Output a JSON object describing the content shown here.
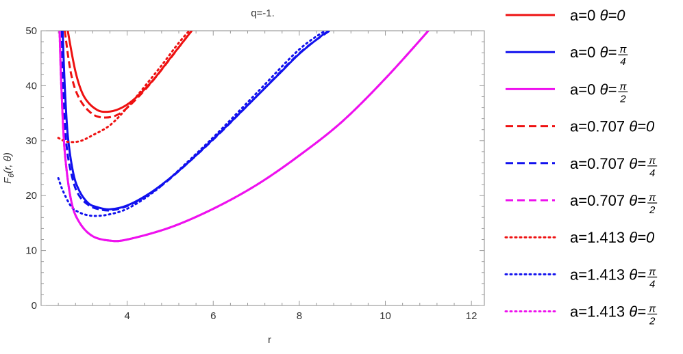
{
  "chart_data": {
    "type": "line",
    "title": "q=-1.",
    "xlabel": "r",
    "ylabel": {
      "main": "F",
      "sub": "θ",
      "args": "(r, θ)"
    },
    "xlim": [
      2.0,
      12.3
    ],
    "ylim": [
      0,
      50
    ],
    "xticks": [
      4,
      6,
      8,
      10,
      12
    ],
    "yticks": [
      0,
      10,
      20,
      30,
      40,
      50
    ],
    "grid": false,
    "legend_placement": "right",
    "colors": {
      "theta_0": "#ee1111",
      "theta_pi4": "#1111ee",
      "theta_pi2": "#ee11ee"
    },
    "series": [
      {
        "name": "a=0 θ=0",
        "a_text": "a=0",
        "theta_text": "θ=0",
        "frac": false,
        "color": "#ee1111",
        "style": "solid",
        "x": [
          2.62,
          2.8,
          3.0,
          3.3,
          3.6,
          3.9,
          4.2,
          4.6,
          5.0,
          5.5
        ],
        "y": [
          50,
          42.5,
          38.0,
          35.6,
          35.3,
          36.1,
          37.8,
          41.0,
          45.0,
          50.0
        ]
      },
      {
        "name": "a=0 θ=π/4",
        "a_text": "a=0",
        "theta_text": "θ=",
        "frac": true,
        "frac_num": "π",
        "frac_den": "4",
        "color": "#1111ee",
        "style": "solid",
        "x": [
          2.5,
          2.55,
          2.62,
          2.75,
          2.9,
          3.1,
          3.3,
          3.6,
          4.0,
          4.5,
          5.0,
          5.5,
          6.0,
          6.5,
          7.0,
          7.5,
          8.0,
          8.5,
          8.7
        ],
        "y": [
          50,
          40.0,
          31.0,
          24.0,
          20.7,
          18.6,
          17.9,
          17.5,
          18.2,
          20.3,
          23.2,
          26.6,
          30.3,
          34.1,
          38.0,
          41.9,
          45.8,
          49.0,
          50.0
        ]
      },
      {
        "name": "a=0 θ=π/2",
        "a_text": "a=0",
        "theta_text": "θ=",
        "frac": true,
        "frac_num": "π",
        "frac_den": "2",
        "color": "#ee11ee",
        "style": "solid",
        "x": [
          2.43,
          2.47,
          2.55,
          2.7,
          2.9,
          3.2,
          3.6,
          4.0,
          5.0,
          6.0,
          7.0,
          8.0,
          9.0,
          10.0,
          11.0
        ],
        "y": [
          50,
          40.0,
          28.0,
          19.0,
          15.0,
          12.6,
          11.8,
          12.0,
          14.2,
          17.6,
          21.9,
          27.3,
          33.5,
          41.3,
          50.0
        ]
      },
      {
        "name": "a=0.707 θ=0",
        "a_text": "a=0.707",
        "theta_text": "θ=0",
        "frac": false,
        "color": "#ee1111",
        "style": "dashed",
        "x": [
          2.55,
          2.7,
          2.9,
          3.2,
          3.5,
          3.8,
          4.1,
          4.5,
          4.9,
          5.3,
          5.5
        ],
        "y": [
          50,
          42.0,
          37.5,
          34.8,
          34.2,
          34.8,
          36.7,
          40.0,
          43.9,
          48.0,
          50.0
        ]
      },
      {
        "name": "a=0.707 θ=π/4",
        "a_text": "a=0.707",
        "theta_text": "θ=",
        "frac": true,
        "frac_num": "π",
        "frac_den": "4",
        "color": "#1111ee",
        "style": "dashed",
        "x": [
          2.48,
          2.52,
          2.6,
          2.75,
          2.9,
          3.1,
          3.3,
          3.6,
          4.0,
          4.5,
          5.0,
          6.0,
          7.0,
          8.0,
          8.7
        ],
        "y": [
          50,
          38.0,
          28.5,
          22.5,
          19.8,
          18.3,
          17.6,
          17.3,
          18.1,
          20.2,
          23.1,
          30.2,
          38.0,
          45.9,
          50.0
        ]
      },
      {
        "name": "a=0.707 θ=π/2",
        "a_text": "a=0.707",
        "theta_text": "θ=",
        "frac": true,
        "frac_num": "π",
        "frac_den": "2",
        "color": "#ee11ee",
        "style": "dashed",
        "x": [
          2.43,
          2.47,
          2.55,
          2.7,
          2.9,
          3.2,
          3.6,
          4.0,
          5.0,
          6.0,
          7.0,
          8.0,
          9.0,
          10.0,
          11.0
        ],
        "y": [
          50,
          40.0,
          28.0,
          19.0,
          15.0,
          12.6,
          11.8,
          12.0,
          14.2,
          17.6,
          21.9,
          27.3,
          33.5,
          41.3,
          50.0
        ]
      },
      {
        "name": "a=1.413 θ=0",
        "a_text": "a=1.413",
        "theta_text": "θ=0",
        "frac": false,
        "color": "#ee1111",
        "style": "dotted",
        "x": [
          2.4,
          2.6,
          2.9,
          3.2,
          3.6,
          4.0,
          4.4,
          4.8,
          5.2,
          5.5
        ],
        "y": [
          30.5,
          29.8,
          29.9,
          31.0,
          32.8,
          36.0,
          39.8,
          43.7,
          47.8,
          50.5
        ]
      },
      {
        "name": "a=1.413 θ=π/4",
        "a_text": "a=1.413",
        "theta_text": "θ=",
        "frac": true,
        "frac_num": "π",
        "frac_den": "4",
        "color": "#1111ee",
        "style": "dotted",
        "x": [
          2.4,
          2.5,
          2.7,
          2.9,
          3.1,
          3.3,
          3.6,
          4.0,
          4.5,
          5.0,
          6.0,
          7.0,
          8.0,
          8.7
        ],
        "y": [
          23.2,
          21.0,
          18.0,
          16.9,
          16.4,
          16.3,
          16.6,
          17.6,
          20.0,
          23.2,
          30.6,
          38.6,
          46.6,
          50.5
        ]
      },
      {
        "name": "a=1.413 θ=π/2",
        "a_text": "a=1.413",
        "theta_text": "θ=",
        "frac": true,
        "frac_num": "π",
        "frac_den": "2",
        "color": "#ee11ee",
        "style": "dotted",
        "x": [
          2.43,
          2.47,
          2.55,
          2.7,
          2.9,
          3.2,
          3.6,
          4.0,
          5.0,
          6.0,
          7.0,
          8.0,
          9.0,
          10.0,
          11.0
        ],
        "y": [
          50,
          40.0,
          28.0,
          19.0,
          15.0,
          12.6,
          11.8,
          12.0,
          14.2,
          17.6,
          21.9,
          27.3,
          33.5,
          41.3,
          50.0
        ]
      }
    ]
  }
}
